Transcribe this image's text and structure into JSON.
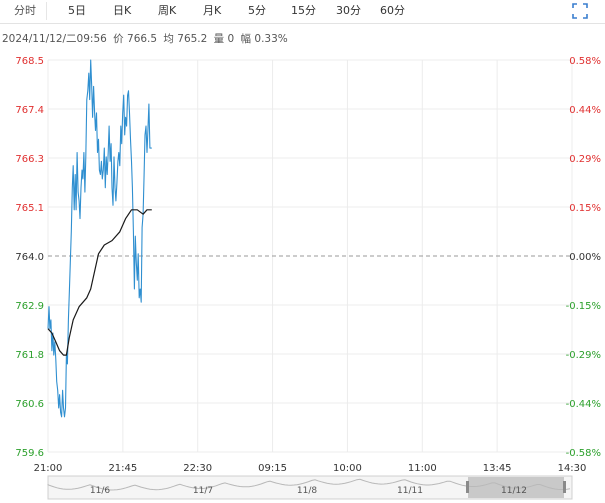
{
  "tabs": [
    {
      "label": "分时",
      "active": true
    },
    {
      "label": "5日"
    },
    {
      "label": "日K"
    },
    {
      "label": "周K"
    },
    {
      "label": "月K"
    },
    {
      "label": "5分"
    },
    {
      "label": "15分"
    },
    {
      "label": "30分"
    },
    {
      "label": "60分"
    }
  ],
  "fullscreen_icon": "fullscreen-icon",
  "info": {
    "datetime": "2024/11/12/二09:56",
    "price": "价 766.5",
    "avg": "均 765.2",
    "volume": "量 0",
    "change": "幅 0.33%"
  },
  "colors": {
    "price_line": "#2f8fd0",
    "avg_line": "#1a1a1a",
    "up": "#e03030",
    "down": "#2ca02c",
    "neutral": "#333333",
    "grid": "#ececec",
    "ref_dash": "#9a9a9a"
  },
  "chart_data": {
    "type": "line",
    "ylim": [
      759.6,
      768.5
    ],
    "reference": 764.0,
    "y_ticks": [
      "768.5",
      "767.4",
      "766.3",
      "765.1",
      "764.0",
      "762.9",
      "761.8",
      "760.6",
      "759.6"
    ],
    "pct_ticks": [
      "0.58%",
      "0.44%",
      "0.29%",
      "0.15%",
      "0.00%",
      "-0.15%",
      "-0.29%",
      "-0.44%",
      "-0.58%"
    ],
    "x_ticks": [
      "21:00",
      "21:45",
      "22:30",
      "09:15",
      "10:00",
      "11:00",
      "13:45",
      "14:30"
    ],
    "series": [
      {
        "name": "价",
        "points": [
          [
            0,
            762.4
          ],
          [
            1,
            762.9
          ],
          [
            2,
            762.4
          ],
          [
            3,
            762.6
          ],
          [
            4,
            761.9
          ],
          [
            5,
            762.3
          ],
          [
            6,
            761.8
          ],
          [
            7,
            762.1
          ],
          [
            8,
            761.7
          ],
          [
            9,
            761.2
          ],
          [
            10,
            761.0
          ],
          [
            11,
            760.6
          ],
          [
            12,
            760.9
          ],
          [
            13,
            760.5
          ],
          [
            14,
            760.4
          ],
          [
            15,
            761.0
          ],
          [
            16,
            760.6
          ],
          [
            17,
            760.4
          ],
          [
            18,
            760.6
          ],
          [
            19,
            761.8
          ],
          [
            20,
            761.6
          ],
          [
            21,
            762.6
          ],
          [
            22,
            763.2
          ],
          [
            23,
            763.9
          ],
          [
            24,
            764.6
          ],
          [
            25,
            765.6
          ],
          [
            26,
            766.1
          ],
          [
            27,
            765.1
          ],
          [
            28,
            765.9
          ],
          [
            29,
            765.1
          ],
          [
            30,
            766.4
          ],
          [
            31,
            765.5
          ],
          [
            32,
            765.3
          ],
          [
            33,
            764.9
          ],
          [
            34,
            765.6
          ],
          [
            35,
            766.0
          ],
          [
            36,
            765.8
          ],
          [
            37,
            766.4
          ],
          [
            38,
            765.5
          ],
          [
            39,
            766.3
          ],
          [
            40,
            767.6
          ],
          [
            41,
            767.8
          ],
          [
            42,
            768.2
          ],
          [
            43,
            767.6
          ],
          [
            44,
            768.5
          ],
          [
            45,
            767.9
          ],
          [
            46,
            767.2
          ],
          [
            47,
            767.9
          ],
          [
            48,
            767.3
          ],
          [
            49,
            766.9
          ],
          [
            50,
            767.3
          ],
          [
            51,
            766.4
          ],
          [
            52,
            766.7
          ],
          [
            53,
            766.0
          ],
          [
            54,
            765.9
          ],
          [
            55,
            766.2
          ],
          [
            56,
            765.8
          ],
          [
            57,
            766.0
          ],
          [
            58,
            766.5
          ],
          [
            59,
            765.6
          ],
          [
            60,
            766.3
          ],
          [
            61,
            765.9
          ],
          [
            62,
            766.4
          ],
          [
            63,
            767.0
          ],
          [
            64,
            766.2
          ],
          [
            65,
            766.6
          ],
          [
            66,
            765.6
          ],
          [
            67,
            765.2
          ],
          [
            68,
            766.3
          ],
          [
            69,
            765.6
          ],
          [
            70,
            765.3
          ],
          [
            71,
            765.7
          ],
          [
            72,
            766.2
          ],
          [
            73,
            766.4
          ],
          [
            74,
            766.1
          ],
          [
            75,
            767.0
          ],
          [
            76,
            766.6
          ],
          [
            77,
            767.3
          ],
          [
            78,
            767.7
          ],
          [
            79,
            766.8
          ],
          [
            80,
            767.2
          ],
          [
            81,
            767.0
          ],
          [
            82,
            767.7
          ],
          [
            83,
            767.8
          ],
          [
            84,
            767.3
          ],
          [
            85,
            766.7
          ],
          [
            86,
            766.2
          ],
          [
            87,
            765.6
          ],
          [
            88,
            764.6
          ],
          [
            89,
            763.3
          ],
          [
            90,
            764.5
          ],
          [
            91,
            763.9
          ],
          [
            92,
            763.5
          ],
          [
            93,
            764.1
          ],
          [
            94,
            763.1
          ],
          [
            95,
            763.3
          ],
          [
            96,
            763.0
          ],
          [
            97,
            764.7
          ],
          [
            98,
            765.0
          ],
          [
            99,
            765.9
          ],
          [
            100,
            766.8
          ],
          [
            101,
            767.0
          ],
          [
            102,
            766.4
          ],
          [
            103,
            766.9
          ],
          [
            104,
            767.5
          ],
          [
            105,
            766.5
          ],
          [
            106,
            766.5
          ],
          [
            107,
            766.5
          ]
        ]
      },
      {
        "name": "均",
        "points": [
          [
            0,
            762.4
          ],
          [
            4,
            762.3
          ],
          [
            8,
            762.1
          ],
          [
            12,
            761.9
          ],
          [
            16,
            761.8
          ],
          [
            19,
            761.8
          ],
          [
            22,
            762.2
          ],
          [
            26,
            762.6
          ],
          [
            32,
            762.9
          ],
          [
            40,
            763.1
          ],
          [
            44,
            763.3
          ],
          [
            48,
            763.7
          ],
          [
            52,
            764.1
          ],
          [
            58,
            764.3
          ],
          [
            66,
            764.4
          ],
          [
            74,
            764.6
          ],
          [
            80,
            764.9
          ],
          [
            86,
            765.1
          ],
          [
            92,
            765.1
          ],
          [
            98,
            765.0
          ],
          [
            102,
            765.1
          ],
          [
            107,
            765.1
          ]
        ]
      }
    ],
    "navigator": {
      "labels": [
        "11/6",
        "11/7",
        "11/8",
        "11/11",
        "11/12"
      ]
    }
  }
}
